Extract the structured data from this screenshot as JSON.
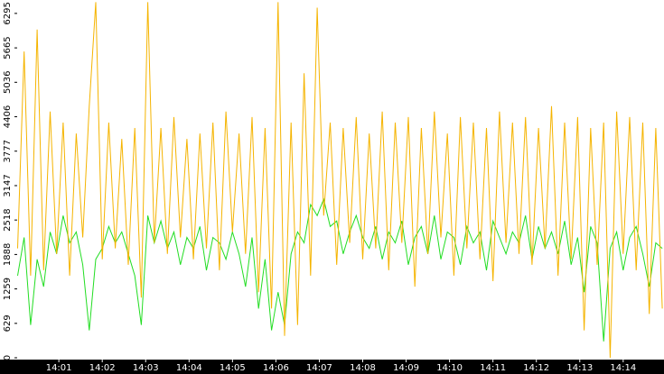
{
  "chart_data": {
    "type": "line",
    "x": [
      0.05,
      0.2,
      0.35,
      0.5,
      0.65,
      0.8,
      0.95,
      1.1,
      1.25,
      1.4,
      1.55,
      1.7,
      1.85,
      2,
      2.15,
      2.3,
      2.45,
      2.6,
      2.75,
      2.9,
      3.05,
      3.2,
      3.35,
      3.5,
      3.65,
      3.8,
      3.95,
      4.1,
      4.25,
      4.4,
      4.55,
      4.7,
      4.85,
      5,
      5.15,
      5.3,
      5.45,
      5.6,
      5.75,
      5.9,
      6.05,
      6.2,
      6.35,
      6.5,
      6.65,
      6.8,
      6.95,
      7.1,
      7.25,
      7.4,
      7.55,
      7.7,
      7.85,
      8,
      8.15,
      8.3,
      8.45,
      8.6,
      8.75,
      8.9,
      9.05,
      9.2,
      9.35,
      9.5,
      9.65,
      9.8,
      9.95,
      10.1,
      10.25,
      10.4,
      10.55,
      10.7,
      10.85,
      11,
      11.15,
      11.3,
      11.45,
      11.6,
      11.75,
      11.9,
      12.05,
      12.2,
      12.35,
      12.5,
      12.65,
      12.8,
      12.95,
      13.1,
      13.25,
      13.4,
      13.55,
      13.7,
      13.85,
      14,
      14.15,
      14.3,
      14.45,
      14.6,
      14.75,
      14.9
    ],
    "series": [
      {
        "color": "#22dd22",
        "values": [
          1500,
          2200,
          600,
          1800,
          1300,
          2300,
          1900,
          2600,
          2100,
          2300,
          1700,
          500,
          1800,
          2000,
          2400,
          2100,
          2300,
          1900,
          1500,
          600,
          2600,
          2100,
          2500,
          2000,
          2300,
          1700,
          2200,
          2000,
          2400,
          1600,
          2200,
          2100,
          1800,
          2300,
          1900,
          1300,
          2200,
          900,
          1800,
          500,
          1200,
          600,
          1900,
          2300,
          2100,
          2800,
          2600,
          2900,
          2400,
          2500,
          1900,
          2300,
          2600,
          2200,
          2000,
          2400,
          1800,
          2300,
          2100,
          2500,
          1700,
          2200,
          2400,
          1900,
          2600,
          1800,
          2300,
          2200,
          1700,
          2400,
          2100,
          2300,
          1600,
          2500,
          2200,
          1900,
          2300,
          2100,
          2600,
          1800,
          2400,
          2000,
          2300,
          1900,
          2500,
          1700,
          2200,
          1200,
          2400,
          2100,
          300,
          2000,
          2300,
          1600,
          2200,
          2400,
          1900,
          1300,
          2100,
          2000
        ]
      },
      {
        "color": "#f5b400",
        "values": [
          2000,
          5600,
          1500,
          6000,
          1600,
          4500,
          1900,
          4300,
          1500,
          4100,
          2200,
          4600,
          6500,
          1800,
          4300,
          2000,
          4000,
          1700,
          4200,
          1100,
          6500,
          2100,
          4200,
          1900,
          4400,
          2200,
          4000,
          1800,
          4100,
          2000,
          4300,
          1600,
          4500,
          2300,
          4100,
          1900,
          4400,
          1200,
          4200,
          900,
          6500,
          400,
          4300,
          600,
          5200,
          1500,
          6400,
          2600,
          4300,
          1700,
          4200,
          2100,
          4400,
          1800,
          4100,
          2000,
          4500,
          1600,
          4300,
          2100,
          4400,
          1300,
          4200,
          1900,
          4500,
          2200,
          4100,
          1500,
          4400,
          2000,
          4300,
          1800,
          4200,
          1400,
          4500,
          2100,
          4300,
          1900,
          4400,
          1700,
          4200,
          2000,
          4600,
          1500,
          4300,
          1800,
          4400,
          500,
          4200,
          1700,
          4300,
          0,
          4500,
          1900,
          4400,
          1600,
          4300,
          800,
          4200,
          900
        ]
      }
    ],
    "ylim": [
      0,
      6540
    ],
    "yticks": [
      0,
      629,
      1259,
      1888,
      2518,
      3147,
      3777,
      4406,
      5036,
      5665,
      6295
    ],
    "xlim": [
      0.04,
      14.94
    ],
    "xticks": [
      {
        "value": 1,
        "label": "14:01"
      },
      {
        "value": 2,
        "label": "14:02"
      },
      {
        "value": 3,
        "label": "14:03"
      },
      {
        "value": 4,
        "label": "14:04"
      },
      {
        "value": 5,
        "label": "14:05"
      },
      {
        "value": 6,
        "label": "14:06"
      },
      {
        "value": 7,
        "label": "14:07"
      },
      {
        "value": 8,
        "label": "14:08"
      },
      {
        "value": 9,
        "label": "14:09"
      },
      {
        "value": 10,
        "label": "14:10"
      },
      {
        "value": 11,
        "label": "14:11"
      },
      {
        "value": 12,
        "label": "14:12"
      },
      {
        "value": 13,
        "label": "14:13"
      },
      {
        "value": 14,
        "label": "14:14"
      }
    ]
  }
}
